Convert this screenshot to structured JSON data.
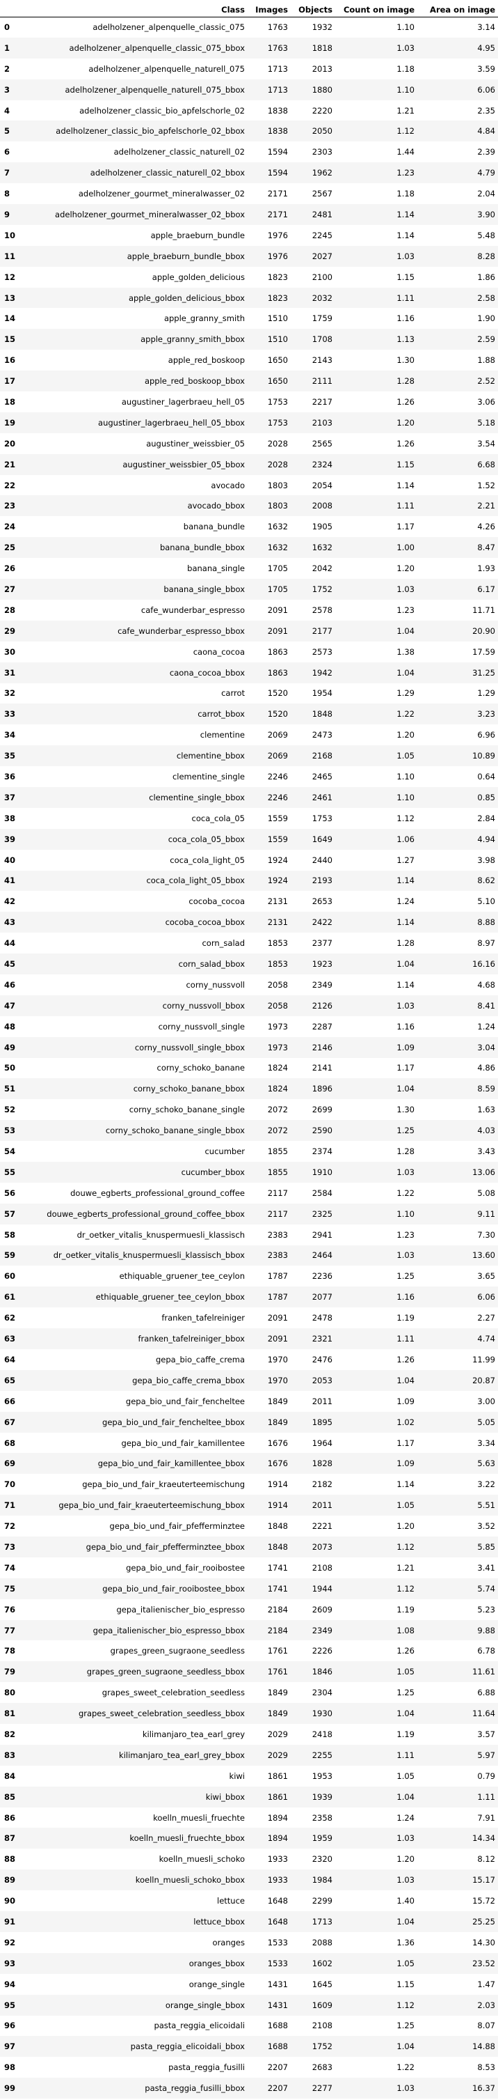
{
  "table": {
    "headers": [
      "",
      "Class",
      "Images",
      "Objects",
      "Count on image",
      "Area on image"
    ],
    "rows": [
      [
        "0",
        "adelholzener_alpenquelle_classic_075",
        "1763",
        "1932",
        "1.10",
        "3.14"
      ],
      [
        "1",
        "adelholzener_alpenquelle_classic_075_bbox",
        "1763",
        "1818",
        "1.03",
        "4.95"
      ],
      [
        "2",
        "adelholzener_alpenquelle_naturell_075",
        "1713",
        "2013",
        "1.18",
        "3.59"
      ],
      [
        "3",
        "adelholzener_alpenquelle_naturell_075_bbox",
        "1713",
        "1880",
        "1.10",
        "6.06"
      ],
      [
        "4",
        "adelholzener_classic_bio_apfelschorle_02",
        "1838",
        "2220",
        "1.21",
        "2.35"
      ],
      [
        "5",
        "adelholzener_classic_bio_apfelschorle_02_bbox",
        "1838",
        "2050",
        "1.12",
        "4.84"
      ],
      [
        "6",
        "adelholzener_classic_naturell_02",
        "1594",
        "2303",
        "1.44",
        "2.39"
      ],
      [
        "7",
        "adelholzener_classic_naturell_02_bbox",
        "1594",
        "1962",
        "1.23",
        "4.79"
      ],
      [
        "8",
        "adelholzener_gourmet_mineralwasser_02",
        "2171",
        "2567",
        "1.18",
        "2.04"
      ],
      [
        "9",
        "adelholzener_gourmet_mineralwasser_02_bbox",
        "2171",
        "2481",
        "1.14",
        "3.90"
      ],
      [
        "10",
        "apple_braeburn_bundle",
        "1976",
        "2245",
        "1.14",
        "5.48"
      ],
      [
        "11",
        "apple_braeburn_bundle_bbox",
        "1976",
        "2027",
        "1.03",
        "8.28"
      ],
      [
        "12",
        "apple_golden_delicious",
        "1823",
        "2100",
        "1.15",
        "1.86"
      ],
      [
        "13",
        "apple_golden_delicious_bbox",
        "1823",
        "2032",
        "1.11",
        "2.58"
      ],
      [
        "14",
        "apple_granny_smith",
        "1510",
        "1759",
        "1.16",
        "1.90"
      ],
      [
        "15",
        "apple_granny_smith_bbox",
        "1510",
        "1708",
        "1.13",
        "2.59"
      ],
      [
        "16",
        "apple_red_boskoop",
        "1650",
        "2143",
        "1.30",
        "1.88"
      ],
      [
        "17",
        "apple_red_boskoop_bbox",
        "1650",
        "2111",
        "1.28",
        "2.52"
      ],
      [
        "18",
        "augustiner_lagerbraeu_hell_05",
        "1753",
        "2217",
        "1.26",
        "3.06"
      ],
      [
        "19",
        "augustiner_lagerbraeu_hell_05_bbox",
        "1753",
        "2103",
        "1.20",
        "5.18"
      ],
      [
        "20",
        "augustiner_weissbier_05",
        "2028",
        "2565",
        "1.26",
        "3.54"
      ],
      [
        "21",
        "augustiner_weissbier_05_bbox",
        "2028",
        "2324",
        "1.15",
        "6.68"
      ],
      [
        "22",
        "avocado",
        "1803",
        "2054",
        "1.14",
        "1.52"
      ],
      [
        "23",
        "avocado_bbox",
        "1803",
        "2008",
        "1.11",
        "2.21"
      ],
      [
        "24",
        "banana_bundle",
        "1632",
        "1905",
        "1.17",
        "4.26"
      ],
      [
        "25",
        "banana_bundle_bbox",
        "1632",
        "1632",
        "1.00",
        "8.47"
      ],
      [
        "26",
        "banana_single",
        "1705",
        "2042",
        "1.20",
        "1.93"
      ],
      [
        "27",
        "banana_single_bbox",
        "1705",
        "1752",
        "1.03",
        "6.17"
      ],
      [
        "28",
        "cafe_wunderbar_espresso",
        "2091",
        "2578",
        "1.23",
        "11.71"
      ],
      [
        "29",
        "cafe_wunderbar_espresso_bbox",
        "2091",
        "2177",
        "1.04",
        "20.90"
      ],
      [
        "30",
        "caona_cocoa",
        "1863",
        "2573",
        "1.38",
        "17.59"
      ],
      [
        "31",
        "caona_cocoa_bbox",
        "1863",
        "1942",
        "1.04",
        "31.25"
      ],
      [
        "32",
        "carrot",
        "1520",
        "1954",
        "1.29",
        "1.29"
      ],
      [
        "33",
        "carrot_bbox",
        "1520",
        "1848",
        "1.22",
        "3.23"
      ],
      [
        "34",
        "clementine",
        "2069",
        "2473",
        "1.20",
        "6.96"
      ],
      [
        "35",
        "clementine_bbox",
        "2069",
        "2168",
        "1.05",
        "10.89"
      ],
      [
        "36",
        "clementine_single",
        "2246",
        "2465",
        "1.10",
        "0.64"
      ],
      [
        "37",
        "clementine_single_bbox",
        "2246",
        "2461",
        "1.10",
        "0.85"
      ],
      [
        "38",
        "coca_cola_05",
        "1559",
        "1753",
        "1.12",
        "2.84"
      ],
      [
        "39",
        "coca_cola_05_bbox",
        "1559",
        "1649",
        "1.06",
        "4.94"
      ],
      [
        "40",
        "coca_cola_light_05",
        "1924",
        "2440",
        "1.27",
        "3.98"
      ],
      [
        "41",
        "coca_cola_light_05_bbox",
        "1924",
        "2193",
        "1.14",
        "8.62"
      ],
      [
        "42",
        "cocoba_cocoa",
        "2131",
        "2653",
        "1.24",
        "5.10"
      ],
      [
        "43",
        "cocoba_cocoa_bbox",
        "2131",
        "2422",
        "1.14",
        "8.88"
      ],
      [
        "44",
        "corn_salad",
        "1853",
        "2377",
        "1.28",
        "8.97"
      ],
      [
        "45",
        "corn_salad_bbox",
        "1853",
        "1923",
        "1.04",
        "16.16"
      ],
      [
        "46",
        "corny_nussvoll",
        "2058",
        "2349",
        "1.14",
        "4.68"
      ],
      [
        "47",
        "corny_nussvoll_bbox",
        "2058",
        "2126",
        "1.03",
        "8.41"
      ],
      [
        "48",
        "corny_nussvoll_single",
        "1973",
        "2287",
        "1.16",
        "1.24"
      ],
      [
        "49",
        "corny_nussvoll_single_bbox",
        "1973",
        "2146",
        "1.09",
        "3.04"
      ],
      [
        "50",
        "corny_schoko_banane",
        "1824",
        "2141",
        "1.17",
        "4.86"
      ],
      [
        "51",
        "corny_schoko_banane_bbox",
        "1824",
        "1896",
        "1.04",
        "8.59"
      ],
      [
        "52",
        "corny_schoko_banane_single",
        "2072",
        "2699",
        "1.30",
        "1.63"
      ],
      [
        "53",
        "corny_schoko_banane_single_bbox",
        "2072",
        "2590",
        "1.25",
        "4.03"
      ],
      [
        "54",
        "cucumber",
        "1855",
        "2374",
        "1.28",
        "3.43"
      ],
      [
        "55",
        "cucumber_bbox",
        "1855",
        "1910",
        "1.03",
        "13.06"
      ],
      [
        "56",
        "douwe_egberts_professional_ground_coffee",
        "2117",
        "2584",
        "1.22",
        "5.08"
      ],
      [
        "57",
        "douwe_egberts_professional_ground_coffee_bbox",
        "2117",
        "2325",
        "1.10",
        "9.11"
      ],
      [
        "58",
        "dr_oetker_vitalis_knuspermuesli_klassisch",
        "2383",
        "2941",
        "1.23",
        "7.30"
      ],
      [
        "59",
        "dr_oetker_vitalis_knuspermuesli_klassisch_bbox",
        "2383",
        "2464",
        "1.03",
        "13.60"
      ],
      [
        "60",
        "ethiquable_gruener_tee_ceylon",
        "1787",
        "2236",
        "1.25",
        "3.65"
      ],
      [
        "61",
        "ethiquable_gruener_tee_ceylon_bbox",
        "1787",
        "2077",
        "1.16",
        "6.06"
      ],
      [
        "62",
        "franken_tafelreiniger",
        "2091",
        "2478",
        "1.19",
        "2.27"
      ],
      [
        "63",
        "franken_tafelreiniger_bbox",
        "2091",
        "2321",
        "1.11",
        "4.74"
      ],
      [
        "64",
        "gepa_bio_caffe_crema",
        "1970",
        "2476",
        "1.26",
        "11.99"
      ],
      [
        "65",
        "gepa_bio_caffe_crema_bbox",
        "1970",
        "2053",
        "1.04",
        "20.87"
      ],
      [
        "66",
        "gepa_bio_und_fair_fencheltee",
        "1849",
        "2011",
        "1.09",
        "3.00"
      ],
      [
        "67",
        "gepa_bio_und_fair_fencheltee_bbox",
        "1849",
        "1895",
        "1.02",
        "5.05"
      ],
      [
        "68",
        "gepa_bio_und_fair_kamillentee",
        "1676",
        "1964",
        "1.17",
        "3.34"
      ],
      [
        "69",
        "gepa_bio_und_fair_kamillentee_bbox",
        "1676",
        "1828",
        "1.09",
        "5.63"
      ],
      [
        "70",
        "gepa_bio_und_fair_kraeutertee​mischung",
        "1914",
        "2182",
        "1.14",
        "3.22"
      ],
      [
        "71",
        "gepa_bio_und_fair_kraeutertee​mischung_bbox",
        "1914",
        "2011",
        "1.05",
        "5.51"
      ],
      [
        "72",
        "gepa_bio_und_fair_pfefferminztee",
        "1848",
        "2221",
        "1.20",
        "3.52"
      ],
      [
        "73",
        "gepa_bio_und_fair_pfefferminztee_bbox",
        "1848",
        "2073",
        "1.12",
        "5.85"
      ],
      [
        "74",
        "gepa_bio_und_fair_rooibostee",
        "1741",
        "2108",
        "1.21",
        "3.41"
      ],
      [
        "75",
        "gepa_bio_und_fair_rooibostee_bbox",
        "1741",
        "1944",
        "1.12",
        "5.74"
      ],
      [
        "76",
        "gepa_italienischer_bio_espresso",
        "2184",
        "2609",
        "1.19",
        "5.23"
      ],
      [
        "77",
        "gepa_italienischer_bio_espresso_bbox",
        "2184",
        "2349",
        "1.08",
        "9.88"
      ],
      [
        "78",
        "grapes_green_sugraone_seedless",
        "1761",
        "2226",
        "1.26",
        "6.78"
      ],
      [
        "79",
        "grapes_green_sugraone_seedless_bbox",
        "1761",
        "1846",
        "1.05",
        "11.61"
      ],
      [
        "80",
        "grapes_sweet_celebration_seedless",
        "1849",
        "2304",
        "1.25",
        "6.88"
      ],
      [
        "81",
        "grapes_sweet_celebration_seedless_bbox",
        "1849",
        "1930",
        "1.04",
        "11.64"
      ],
      [
        "82",
        "kilimanjaro_tea_earl_grey",
        "2029",
        "2418",
        "1.19",
        "3.57"
      ],
      [
        "83",
        "kilimanjaro_tea_earl_grey_bbox",
        "2029",
        "2255",
        "1.11",
        "5.97"
      ],
      [
        "84",
        "kiwi",
        "1861",
        "1953",
        "1.05",
        "0.79"
      ],
      [
        "85",
        "kiwi_bbox",
        "1861",
        "1939",
        "1.04",
        "1.11"
      ],
      [
        "86",
        "koelln_muesli_fruechte",
        "1894",
        "2358",
        "1.24",
        "7.91"
      ],
      [
        "87",
        "koelln_muesli_fruechte_bbox",
        "1894",
        "1959",
        "1.03",
        "14.34"
      ],
      [
        "88",
        "koelln_muesli_schoko",
        "1933",
        "2320",
        "1.20",
        "8.12"
      ],
      [
        "89",
        "koelln_muesli_schoko_bbox",
        "1933",
        "1984",
        "1.03",
        "15.17"
      ],
      [
        "90",
        "lettuce",
        "1648",
        "2299",
        "1.40",
        "15.72"
      ],
      [
        "91",
        "lettuce_bbox",
        "1648",
        "1713",
        "1.04",
        "25.25"
      ],
      [
        "92",
        "oranges",
        "1533",
        "2088",
        "1.36",
        "14.30"
      ],
      [
        "93",
        "oranges_bbox",
        "1533",
        "1602",
        "1.05",
        "23.52"
      ],
      [
        "94",
        "orange_single",
        "1431",
        "1645",
        "1.15",
        "1.47"
      ],
      [
        "95",
        "orange_single_bbox",
        "1431",
        "1609",
        "1.12",
        "2.03"
      ],
      [
        "96",
        "pasta_reggia_elicoidali",
        "1688",
        "2108",
        "1.25",
        "8.07"
      ],
      [
        "97",
        "pasta_reggia_elicoidali_bbox",
        "1688",
        "1752",
        "1.04",
        "14.88"
      ],
      [
        "98",
        "pasta_reggia_fusilli",
        "2207",
        "2683",
        "1.22",
        "8.53"
      ],
      [
        "99",
        "pasta_reggia_fusilli_bbox",
        "2207",
        "2277",
        "1.03",
        "16.37"
      ]
    ]
  }
}
